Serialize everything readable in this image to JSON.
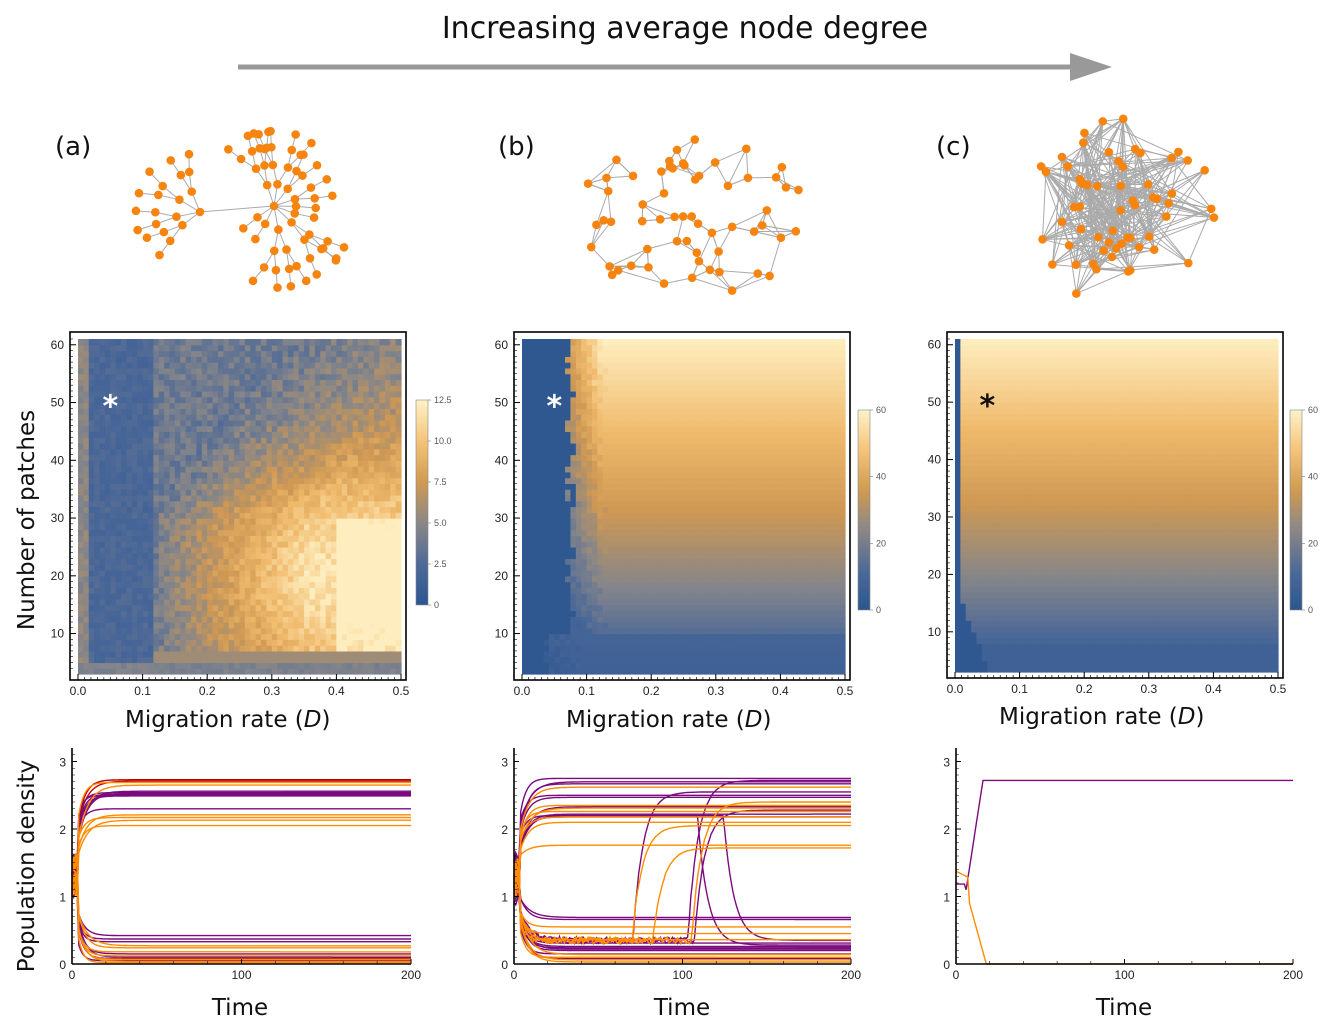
{
  "figure": {
    "title": "Increasing average node degree",
    "arrow_color": "#999999",
    "colors": {
      "node": "#F7840F",
      "edge": "#AAAAAA",
      "low": "#2C5690",
      "mid": "#E4A24B",
      "high": "#FFF2C6",
      "purple": "#7A0B7E",
      "orange": "#FF8C00",
      "red": "#C00000"
    }
  },
  "chart_data": [
    {
      "panel": "(a)",
      "type": "network",
      "description_free": true,
      "nodes": 60,
      "structure": "tree"
    },
    {
      "panel": "(b)",
      "type": "network",
      "nodes": 60,
      "structure": "random-sparse"
    },
    {
      "panel": "(c)",
      "type": "network",
      "nodes": 60,
      "structure": "random-dense"
    },
    {
      "panel": "(a)",
      "type": "heatmap",
      "xlabel": "Migration rate (D)",
      "ylabel": "Number of patches",
      "xlim": [
        0,
        0.5
      ],
      "ylim": [
        3,
        61
      ],
      "xticks": [
        "0.0",
        "0.1",
        "0.2",
        "0.3",
        "0.4",
        "0.5"
      ],
      "yticks": [
        "10",
        "20",
        "30",
        "40",
        "50",
        "60"
      ],
      "colorbar": {
        "min": 0,
        "max": 12.5,
        "ticks": [
          "0",
          "2.5",
          "5.0",
          "7.5",
          "10.0",
          "12.5"
        ]
      },
      "marker": {
        "symbol": "*",
        "x": 0.05,
        "y": 50,
        "color": "#FFFFFF"
      }
    },
    {
      "panel": "(b)",
      "type": "heatmap",
      "xlabel": "Migration rate (D)",
      "ylabel": "",
      "xlim": [
        0,
        0.5
      ],
      "ylim": [
        3,
        61
      ],
      "xticks": [
        "0.0",
        "0.1",
        "0.2",
        "0.3",
        "0.4",
        "0.5"
      ],
      "yticks": [
        "10",
        "20",
        "30",
        "40",
        "50",
        "60"
      ],
      "colorbar": {
        "min": 0,
        "max": 60,
        "ticks": [
          "0",
          "20",
          "40",
          "60"
        ]
      },
      "marker": {
        "symbol": "*",
        "x": 0.05,
        "y": 50,
        "color": "#FFFFFF"
      }
    },
    {
      "panel": "(c)",
      "type": "heatmap",
      "xlabel": "Migration rate (D)",
      "ylabel": "",
      "xlim": [
        0,
        0.5
      ],
      "ylim": [
        3,
        61
      ],
      "xticks": [
        "0.0",
        "0.1",
        "0.2",
        "0.3",
        "0.4",
        "0.5"
      ],
      "yticks": [
        "10",
        "20",
        "30",
        "40",
        "50",
        "60"
      ],
      "colorbar": {
        "min": 0,
        "max": 60,
        "ticks": [
          "0",
          "20",
          "40",
          "60"
        ]
      },
      "marker": {
        "symbol": "*",
        "x": 0.05,
        "y": 50,
        "color": "#111111"
      }
    },
    {
      "panel": "(a)",
      "type": "line",
      "xlabel": "Time",
      "ylabel": "Population density",
      "xlim": [
        0,
        200
      ],
      "ylim": [
        0,
        3.2
      ],
      "xticks": [
        "0",
        "100",
        "200"
      ],
      "yticks": [
        "0",
        "1",
        "2",
        "3"
      ],
      "series": [
        {
          "color": "#C00000",
          "finals": [
            2.73,
            2.71
          ]
        },
        {
          "color": "#7A0B7E",
          "finals": [
            2.56,
            2.54,
            2.53,
            2.52,
            2.51,
            2.5,
            2.49,
            2.3,
            0.42,
            0.37,
            0.33,
            0.15,
            0.1,
            0.08,
            0.05
          ]
        },
        {
          "color": "#FF8C00",
          "finals": [
            2.69,
            2.65,
            2.21,
            2.17,
            2.13,
            2.05,
            0.27,
            0.24,
            0.18,
            0.12,
            0.07,
            0.04,
            0.02
          ]
        }
      ]
    },
    {
      "panel": "(b)",
      "type": "line",
      "xlabel": "Time",
      "ylabel": "",
      "xlim": [
        0,
        200
      ],
      "ylim": [
        0,
        3.2
      ],
      "xticks": [
        "0",
        "100",
        "200"
      ],
      "yticks": [
        "0",
        "1",
        "2",
        "3"
      ],
      "series": [
        {
          "color": "#7A0B7E",
          "finals": [
            2.75,
            2.72,
            2.7,
            2.67,
            2.55,
            2.5,
            2.47,
            2.33,
            2.28,
            2.22,
            2.18,
            0.69,
            0.66,
            0.35,
            0.31,
            0.28,
            0.26,
            0.24,
            0.22,
            0.2,
            0.15,
            0.08
          ]
        },
        {
          "color": "#FF8C00",
          "finals": [
            2.62,
            2.4,
            2.35,
            2.31,
            2.26,
            2.18,
            2.1,
            2.05,
            1.76,
            1.72,
            0.55,
            0.45,
            0.36,
            0.14,
            0.1,
            0.06,
            0.03
          ]
        }
      ]
    },
    {
      "panel": "(c)",
      "type": "line",
      "xlabel": "Time",
      "ylabel": "",
      "xlim": [
        0,
        200
      ],
      "ylim": [
        0,
        3.2
      ],
      "xticks": [
        "0",
        "100",
        "200"
      ],
      "yticks": [
        "0",
        "1",
        "2",
        "3"
      ],
      "series": [
        {
          "color": "#7A0B7E",
          "finals": [
            2.72
          ]
        },
        {
          "color": "#FF8C00",
          "finals": [
            0.0
          ]
        }
      ]
    }
  ]
}
